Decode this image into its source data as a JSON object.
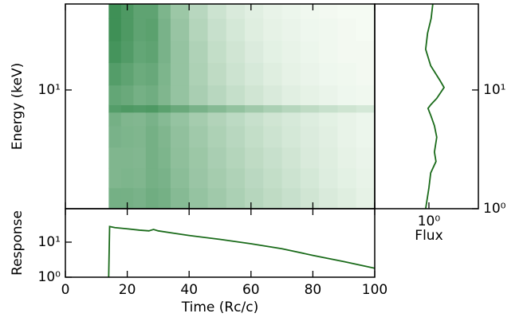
{
  "chart_data": [
    {
      "type": "heatmap",
      "ylabel": "Energy (keV)",
      "log_y": true,
      "color": "#1e7d3a",
      "x_edges": [
        14,
        18,
        22,
        26,
        30,
        34,
        40,
        46,
        52,
        58,
        64,
        70,
        76,
        82,
        88,
        94,
        100
      ],
      "y_edges": [
        1,
        1.5,
        2.2,
        3.3,
        5,
        6.5,
        7.5,
        11,
        17,
        26,
        40,
        53
      ],
      "values": [
        [
          0.6,
          0.6,
          0.58,
          0.62,
          0.6,
          0.52,
          0.45,
          0.4,
          0.35,
          0.3,
          0.26,
          0.22,
          0.18,
          0.14,
          0.11,
          0.08
        ],
        [
          0.55,
          0.56,
          0.55,
          0.6,
          0.58,
          0.5,
          0.43,
          0.38,
          0.33,
          0.28,
          0.24,
          0.2,
          0.16,
          0.12,
          0.09,
          0.07
        ],
        [
          0.55,
          0.55,
          0.54,
          0.6,
          0.56,
          0.48,
          0.42,
          0.36,
          0.31,
          0.26,
          0.22,
          0.18,
          0.14,
          0.11,
          0.08,
          0.06
        ],
        [
          0.58,
          0.56,
          0.55,
          0.6,
          0.55,
          0.47,
          0.4,
          0.34,
          0.29,
          0.24,
          0.2,
          0.16,
          0.13,
          0.1,
          0.07,
          0.05
        ],
        [
          0.6,
          0.55,
          0.54,
          0.58,
          0.52,
          0.45,
          0.38,
          0.32,
          0.27,
          0.22,
          0.18,
          0.15,
          0.12,
          0.09,
          0.07,
          0.05
        ],
        [
          0.75,
          0.78,
          0.76,
          0.78,
          0.72,
          0.65,
          0.58,
          0.52,
          0.46,
          0.4,
          0.35,
          0.3,
          0.26,
          0.22,
          0.19,
          0.16
        ],
        [
          0.68,
          0.65,
          0.6,
          0.62,
          0.55,
          0.45,
          0.36,
          0.29,
          0.23,
          0.18,
          0.14,
          0.1,
          0.08,
          0.06,
          0.04,
          0.03
        ],
        [
          0.75,
          0.7,
          0.64,
          0.66,
          0.56,
          0.45,
          0.34,
          0.26,
          0.2,
          0.15,
          0.11,
          0.08,
          0.06,
          0.04,
          0.03,
          0.02
        ],
        [
          0.82,
          0.76,
          0.68,
          0.7,
          0.58,
          0.45,
          0.33,
          0.24,
          0.18,
          0.13,
          0.09,
          0.07,
          0.05,
          0.03,
          0.02,
          0.02
        ],
        [
          0.85,
          0.78,
          0.7,
          0.72,
          0.58,
          0.44,
          0.31,
          0.22,
          0.16,
          0.11,
          0.08,
          0.06,
          0.04,
          0.03,
          0.02,
          0.01
        ],
        [
          0.85,
          0.78,
          0.7,
          0.7,
          0.56,
          0.42,
          0.29,
          0.2,
          0.14,
          0.1,
          0.07,
          0.05,
          0.03,
          0.02,
          0.01,
          0.01
        ]
      ],
      "xlim": [
        0,
        100
      ],
      "ylim": [
        1,
        53
      ],
      "yticks": [
        {
          "value": 10,
          "label": "10¹"
        }
      ]
    },
    {
      "type": "line",
      "xlabel": "Time (Rc/c)",
      "ylabel": "Response",
      "log_y": true,
      "color": "#1a6b1a",
      "x": [
        14,
        14.3,
        16,
        20,
        24,
        27,
        28.5,
        30,
        35,
        40,
        50,
        60,
        70,
        80,
        90,
        100
      ],
      "values": [
        1,
        28,
        26,
        24,
        22,
        21,
        23,
        21,
        18,
        15.5,
        12,
        9,
        6.5,
        4.2,
        2.8,
        1.8
      ],
      "xlim": [
        0,
        100
      ],
      "xticks": [
        0,
        20,
        40,
        60,
        80,
        100
      ],
      "ylim": [
        1,
        90
      ],
      "yticks": [
        {
          "value": 1,
          "label": "10⁰"
        },
        {
          "value": 10,
          "label": "10¹"
        }
      ]
    },
    {
      "type": "profile",
      "xlabel": "Flux",
      "log_x": true,
      "log_y": true,
      "color": "#1a6b1a",
      "y": [
        1,
        1.5,
        2,
        2.5,
        3,
        4,
        5,
        6,
        7,
        7.5,
        8.5,
        10.5,
        12,
        16,
        22,
        30,
        40,
        53
      ],
      "values": [
        0.93,
        1.0,
        1.04,
        1.17,
        1.13,
        1.19,
        1.13,
        1.05,
        0.98,
        1.04,
        1.19,
        1.4,
        1.28,
        1.04,
        0.93,
        0.97,
        1.05,
        1.09
      ],
      "xlim": [
        0.3,
        3
      ],
      "xticks": [
        {
          "value": 1,
          "label": "10⁰"
        }
      ],
      "ylim": [
        1,
        53
      ],
      "yticks": [
        {
          "value": 1,
          "label": "10⁰"
        },
        {
          "value": 10,
          "label": "10¹"
        }
      ]
    }
  ]
}
